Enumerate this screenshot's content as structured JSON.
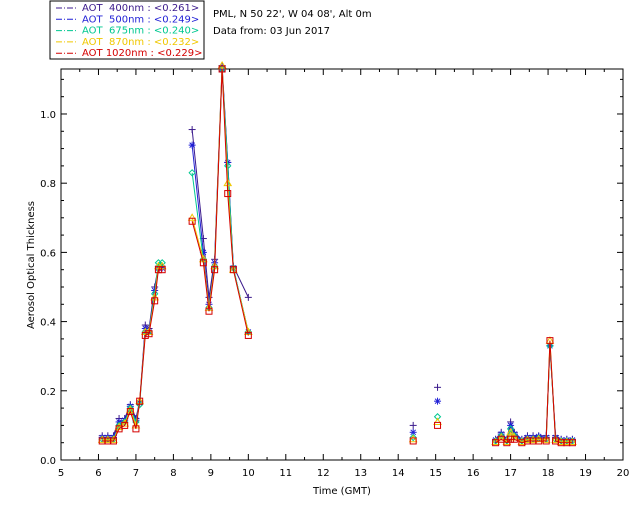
{
  "header": {
    "site": "PML, N 50 22', W 04 08', Alt 0m",
    "date": "Data from: 03 Jun 2017"
  },
  "chart_data": {
    "type": "line",
    "xlabel": "Time (GMT)",
    "ylabel": "Aerosol Optical Thickness",
    "xlim": [
      5,
      20
    ],
    "ylim": [
      0,
      1.13
    ],
    "xticks": [
      "5",
      "6",
      "7",
      "8",
      "9",
      "10",
      "11",
      "12",
      "13",
      "14",
      "15",
      "16",
      "17",
      "18",
      "19",
      "20"
    ],
    "yticks": [
      "0.0",
      "0.2",
      "0.4",
      "0.6",
      "0.8",
      "1.0"
    ],
    "legend_placement": "top-left",
    "series": [
      {
        "name": "AOT  400nm : <0.261>",
        "color": "#3b1a8c",
        "marker": "plus",
        "x": [
          6.1,
          6.25,
          6.4,
          6.55,
          6.7,
          6.85,
          7.0,
          7.1,
          7.25,
          7.35,
          7.5,
          7.6,
          7.7,
          8.5,
          8.8,
          8.95,
          9.1,
          9.3,
          9.45,
          9.6,
          10.0,
          14.4,
          15.05,
          16.6,
          16.75,
          16.9,
          17.0,
          17.1,
          17.3,
          17.45,
          17.6,
          17.75,
          17.95,
          18.05,
          18.2,
          18.35,
          18.5,
          18.65
        ],
        "y": [
          0.07,
          0.07,
          0.07,
          0.12,
          0.12,
          0.16,
          0.12,
          0.17,
          0.39,
          0.38,
          0.5,
          0.56,
          0.56,
          0.955,
          0.64,
          0.47,
          0.58,
          1.14,
          0.86,
          0.56,
          0.47,
          0.1,
          0.21,
          0.06,
          0.08,
          0.06,
          0.11,
          0.08,
          0.06,
          0.07,
          0.07,
          0.07,
          0.07,
          0.33,
          0.07,
          0.06,
          0.06,
          0.06
        ]
      },
      {
        "name": "AOT  500nm : <0.249>",
        "color": "#1f1fd6",
        "marker": "asterisk",
        "x": [
          6.1,
          6.25,
          6.4,
          6.55,
          6.7,
          6.85,
          7.0,
          7.1,
          7.25,
          7.35,
          7.5,
          7.6,
          7.7,
          8.5,
          8.8,
          8.95,
          9.1,
          9.3,
          9.45,
          9.6,
          10.0,
          14.4,
          15.05,
          16.6,
          16.75,
          16.9,
          17.0,
          17.1,
          17.3,
          17.45,
          17.6,
          17.75,
          17.95,
          18.05,
          18.2,
          18.35,
          18.5,
          18.65
        ],
        "y": [
          0.065,
          0.065,
          0.065,
          0.11,
          0.115,
          0.155,
          0.115,
          0.165,
          0.38,
          0.37,
          0.49,
          0.555,
          0.555,
          0.91,
          0.6,
          0.45,
          0.57,
          1.13,
          0.86,
          0.555,
          0.37,
          0.08,
          0.17,
          0.058,
          0.075,
          0.058,
          0.1,
          0.075,
          0.058,
          0.065,
          0.065,
          0.068,
          0.065,
          0.33,
          0.065,
          0.058,
          0.058,
          0.058
        ]
      },
      {
        "name": "AOT  675nm : <0.240>",
        "color": "#00c890",
        "marker": "diamond",
        "x": [
          6.1,
          6.25,
          6.4,
          6.55,
          6.7,
          6.85,
          7.0,
          7.1,
          7.25,
          7.35,
          7.5,
          7.6,
          7.7,
          8.5,
          8.8,
          8.95,
          9.1,
          9.3,
          9.45,
          9.6,
          10.0,
          14.4,
          15.05,
          16.6,
          16.75,
          16.9,
          17.0,
          17.1,
          17.3,
          17.45,
          17.6,
          17.75,
          17.95,
          18.05,
          18.2,
          18.35,
          18.5,
          18.65
        ],
        "y": [
          0.06,
          0.06,
          0.06,
          0.1,
          0.11,
          0.15,
          0.11,
          0.16,
          0.37,
          0.37,
          0.48,
          0.57,
          0.57,
          0.83,
          0.58,
          0.44,
          0.56,
          1.13,
          0.85,
          0.555,
          0.37,
          0.065,
          0.125,
          0.055,
          0.07,
          0.055,
          0.09,
          0.07,
          0.055,
          0.06,
          0.06,
          0.063,
          0.06,
          0.33,
          0.06,
          0.055,
          0.055,
          0.055
        ]
      },
      {
        "name": "AOT  870nm : <0.232>",
        "color": "#f0c800",
        "marker": "triangle",
        "x": [
          6.1,
          6.25,
          6.4,
          6.55,
          6.7,
          6.85,
          7.0,
          7.1,
          7.25,
          7.35,
          7.5,
          7.6,
          7.7,
          8.5,
          8.8,
          8.95,
          9.1,
          9.3,
          9.45,
          9.6,
          10.0,
          14.4,
          15.05,
          16.6,
          16.75,
          16.9,
          17.0,
          17.1,
          17.3,
          17.45,
          17.6,
          17.75,
          17.95,
          18.05,
          18.2,
          18.35,
          18.5,
          18.65
        ],
        "y": [
          0.058,
          0.058,
          0.058,
          0.095,
          0.105,
          0.145,
          0.1,
          0.17,
          0.37,
          0.37,
          0.47,
          0.56,
          0.56,
          0.7,
          0.58,
          0.44,
          0.56,
          1.14,
          0.8,
          0.55,
          0.37,
          0.06,
          0.11,
          0.052,
          0.065,
          0.052,
          0.08,
          0.065,
          0.052,
          0.058,
          0.058,
          0.06,
          0.058,
          0.345,
          0.058,
          0.052,
          0.052,
          0.052
        ]
      },
      {
        "name": "AOT 1020nm : <0.229>",
        "color": "#d40000",
        "marker": "square",
        "x": [
          6.1,
          6.25,
          6.4,
          6.55,
          6.7,
          6.85,
          7.0,
          7.1,
          7.25,
          7.35,
          7.5,
          7.6,
          7.7,
          8.5,
          8.8,
          8.95,
          9.1,
          9.3,
          9.45,
          9.6,
          10.0,
          14.4,
          15.05,
          16.6,
          16.75,
          16.9,
          17.0,
          17.1,
          17.3,
          17.45,
          17.6,
          17.75,
          17.95,
          18.05,
          18.2,
          18.35,
          18.5,
          18.65
        ],
        "y": [
          0.055,
          0.055,
          0.055,
          0.09,
          0.1,
          0.14,
          0.09,
          0.17,
          0.36,
          0.365,
          0.46,
          0.55,
          0.55,
          0.69,
          0.57,
          0.43,
          0.55,
          1.13,
          0.77,
          0.55,
          0.36,
          0.055,
          0.1,
          0.05,
          0.06,
          0.05,
          0.06,
          0.06,
          0.05,
          0.055,
          0.055,
          0.055,
          0.055,
          0.345,
          0.055,
          0.05,
          0.05,
          0.05
        ]
      }
    ]
  }
}
